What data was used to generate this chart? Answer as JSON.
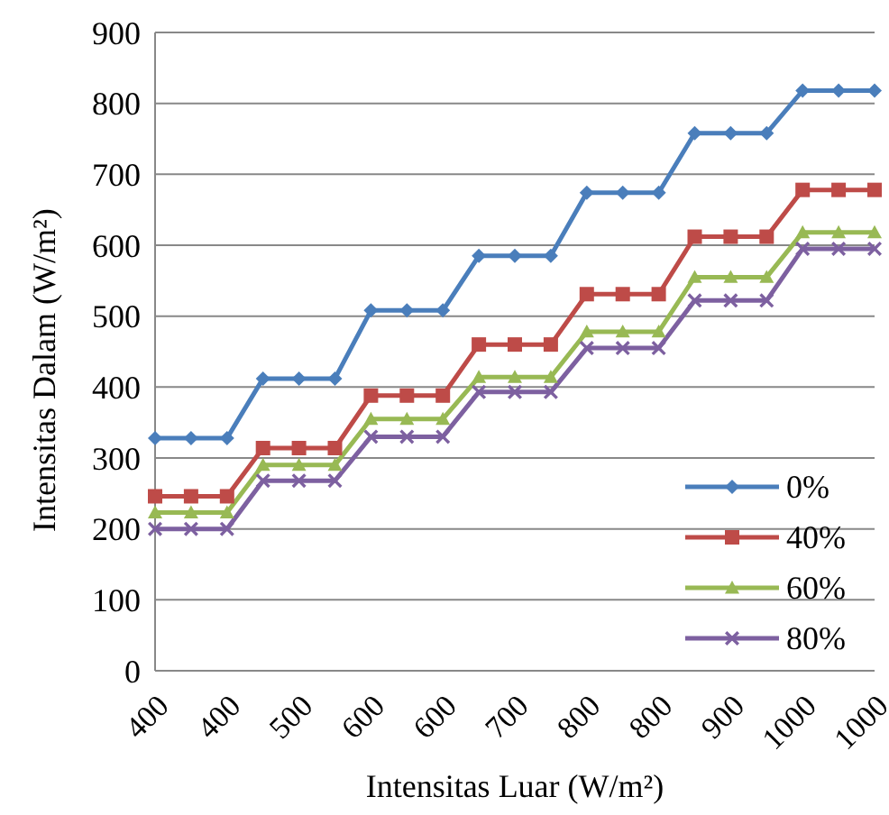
{
  "chart_data": {
    "type": "line",
    "xlabel": "Intensitas Luar  (W/m²)",
    "ylabel": "Intensitas Dalam  (W/m²)",
    "categories": [
      "400",
      null,
      "400",
      null,
      "500",
      null,
      "600",
      null,
      "600",
      null,
      "700",
      null,
      "800",
      null,
      "800",
      null,
      "900",
      null,
      "1000",
      null,
      "1000"
    ],
    "ylim": [
      0,
      900
    ],
    "yticks": [
      0,
      100,
      200,
      300,
      400,
      500,
      600,
      700,
      800,
      900
    ],
    "grid": "y",
    "legend": "bottom right",
    "line_style": "solid",
    "series": [
      {
        "name": "0%",
        "color": "#4a7ebb",
        "marker": "diamond",
        "values": [
          328,
          328,
          328,
          412,
          412,
          412,
          508,
          508,
          508,
          585,
          585,
          585,
          674,
          674,
          674,
          758,
          758,
          758,
          818,
          818,
          818
        ]
      },
      {
        "name": "40%",
        "color": "#be4b48",
        "marker": "square",
        "values": [
          246,
          246,
          246,
          314,
          314,
          314,
          388,
          388,
          388,
          460,
          460,
          460,
          531,
          531,
          531,
          612,
          612,
          612,
          678,
          678,
          678
        ]
      },
      {
        "name": "60%",
        "color": "#98b954",
        "marker": "triangle",
        "values": [
          223,
          223,
          223,
          290,
          290,
          290,
          355,
          355,
          355,
          414,
          414,
          414,
          478,
          478,
          478,
          555,
          555,
          555,
          618,
          618,
          618
        ]
      },
      {
        "name": "80%",
        "color": "#7d60a0",
        "marker": "cross",
        "values": [
          200,
          200,
          200,
          268,
          268,
          268,
          330,
          330,
          330,
          393,
          393,
          393,
          455,
          455,
          455,
          522,
          522,
          522,
          595,
          595,
          595
        ]
      }
    ]
  }
}
